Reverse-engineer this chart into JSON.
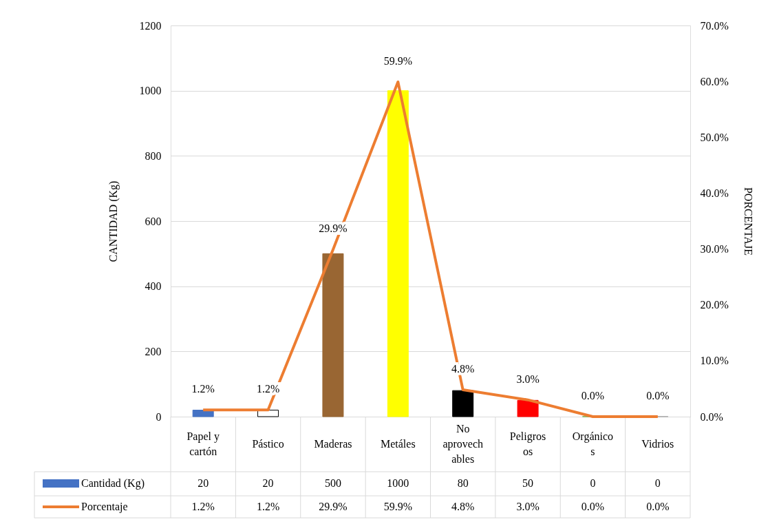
{
  "chart_data": {
    "type": "bar",
    "categories": [
      "Papel y cartón",
      "Pástico",
      "Maderas",
      "Metáles",
      "No aprovechables",
      "Peligrosos",
      "Orgánicos",
      "Vidrios"
    ],
    "ylabel": "CANTIDAD (Kg)",
    "y2label": "PORCENTAJE",
    "series": [
      {
        "name": "Cantidad (Kg)",
        "color": "#4472c4",
        "colors": [
          "#4472c4",
          "#ffffff",
          "#996633",
          "#ffff00",
          "#000000",
          "#ff0000",
          "#70ad47",
          "#a5a5a5"
        ],
        "values": [
          20,
          20,
          500,
          1000,
          80,
          50,
          0,
          0
        ],
        "value_labels": [
          "20",
          "20",
          "500",
          "1000",
          "80",
          "50",
          "0",
          "0"
        ]
      },
      {
        "name": "Porcentaje",
        "type": "line",
        "axis": "y2",
        "color": "#ed7d31",
        "values": [
          1.2,
          1.2,
          29.9,
          59.9,
          4.8,
          3.0,
          0.0,
          0.0
        ],
        "value_labels": [
          "1.2%",
          "1.2%",
          "29.9%",
          "59.9%",
          "4.8%",
          "3.0%",
          "0.0%",
          "0.0%"
        ]
      }
    ],
    "ylim": [
      0,
      1200
    ],
    "yticks": [
      0,
      200,
      400,
      600,
      800,
      1000,
      1200
    ],
    "y2lim": [
      0,
      70
    ],
    "y2ticks": [
      {
        "value": 0,
        "label": "0.0%"
      },
      {
        "value": 10,
        "label": "10.0%"
      },
      {
        "value": 20,
        "label": "20.0%"
      },
      {
        "value": 30,
        "label": "30.0%"
      },
      {
        "value": 40,
        "label": "40.0%"
      },
      {
        "value": 50,
        "label": "50.0%"
      },
      {
        "value": 60,
        "label": "60.0%"
      },
      {
        "value": 70,
        "label": "70.0%"
      }
    ],
    "grid": "y",
    "legend": "bottom",
    "marker": "none",
    "line_style": "solid"
  }
}
